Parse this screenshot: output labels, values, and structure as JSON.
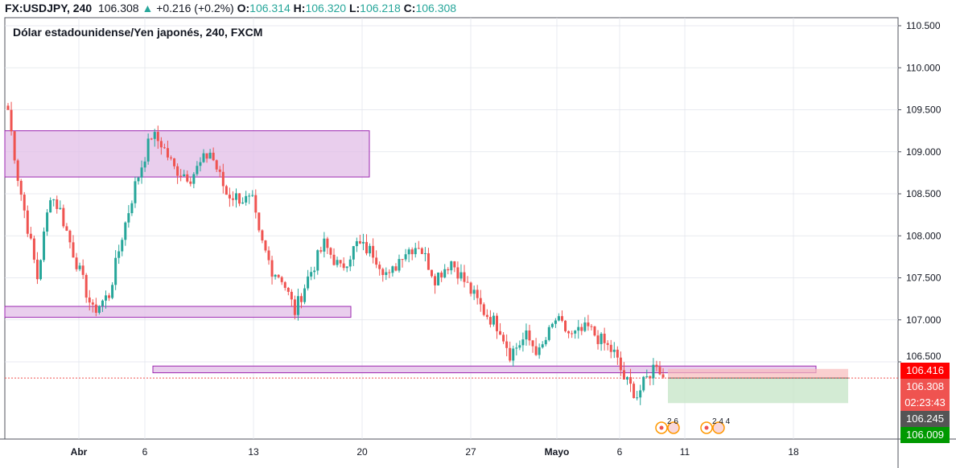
{
  "header": {
    "symbol": "FX:USDJPY, 240",
    "last": "106.308",
    "change": "+0.216 (+0.2%)",
    "o_label": "O:",
    "o": "106.314",
    "h_label": "H:",
    "h": "106.320",
    "l_label": "L:",
    "l": "106.218",
    "c_label": "C:",
    "c": "106.308"
  },
  "chart_title": "Dólar estadounidense/Yen japonés, 240, FXCM",
  "colors": {
    "up": "#26a69a",
    "down": "#ef5350",
    "zone": "#e1bee7",
    "zone_border": "#9c27b0"
  },
  "chart_data": {
    "type": "candlestick",
    "ylim": [
      105.9,
      110.6
    ],
    "y_ticks": [
      "110.500",
      "110.000",
      "109.500",
      "109.000",
      "108.500",
      "108.000",
      "107.500",
      "107.000",
      "106.500"
    ],
    "x_ticks": [
      "Abr",
      "6",
      "13",
      "20",
      "27",
      "Mayo",
      "6",
      "11",
      "18"
    ],
    "close_path": [
      [
        0,
        109.5
      ],
      [
        3,
        108.7
      ],
      [
        7,
        107.9
      ],
      [
        9,
        107.5
      ],
      [
        13,
        108.5
      ],
      [
        16,
        108.3
      ],
      [
        20,
        107.8
      ],
      [
        26,
        107.1
      ],
      [
        31,
        107.3
      ],
      [
        35,
        108.0
      ],
      [
        39,
        108.6
      ],
      [
        44,
        109.2
      ],
      [
        47,
        109.1
      ],
      [
        51,
        108.8
      ],
      [
        56,
        108.7
      ],
      [
        62,
        109.0
      ],
      [
        67,
        108.5
      ],
      [
        75,
        108.4
      ],
      [
        77,
        108.0
      ],
      [
        81,
        107.6
      ],
      [
        84,
        107.5
      ],
      [
        88,
        107.1
      ],
      [
        92,
        107.5
      ],
      [
        97,
        107.9
      ],
      [
        102,
        107.6
      ],
      [
        107,
        107.9
      ],
      [
        112,
        107.8
      ],
      [
        117,
        107.5
      ],
      [
        121,
        107.8
      ],
      [
        126,
        107.9
      ],
      [
        131,
        107.5
      ],
      [
        136,
        107.7
      ],
      [
        141,
        107.4
      ],
      [
        146,
        107.1
      ],
      [
        151,
        106.9
      ],
      [
        154,
        106.6
      ],
      [
        159,
        106.8
      ],
      [
        163,
        106.6
      ],
      [
        168,
        107.0
      ],
      [
        173,
        106.8
      ],
      [
        178,
        106.9
      ],
      [
        186,
        106.6
      ],
      [
        189,
        106.3
      ],
      [
        193,
        106.1
      ],
      [
        196,
        106.3
      ],
      [
        199,
        106.5
      ],
      [
        201,
        106.31
      ]
    ],
    "zones": [
      {
        "top": 109.25,
        "bottom": 108.7
      },
      {
        "top": 107.16,
        "bottom": 107.03
      },
      {
        "top": 106.45,
        "bottom": 106.37
      }
    ],
    "position": {
      "stop": 106.416,
      "entry": 106.308,
      "target": 106.009
    },
    "price_labels": [
      {
        "text": "106.416",
        "color": "#ff0000"
      },
      {
        "text": "106.308",
        "color": "#ef5350"
      },
      {
        "text": "02:23:43",
        "color": "#ef5350"
      },
      {
        "text": "106.245",
        "color": "#555555"
      },
      {
        "text": "106.009",
        "color": "#009900"
      }
    ],
    "events": [
      {
        "text": "2  6"
      },
      {
        "text": "2  4  4"
      }
    ]
  }
}
